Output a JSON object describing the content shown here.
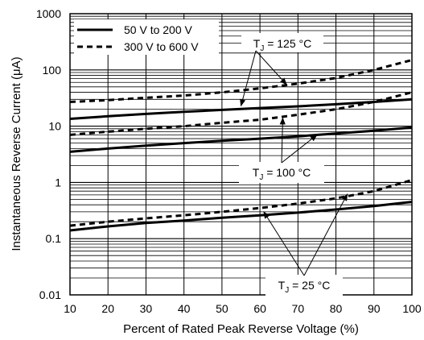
{
  "chart_data": {
    "type": "line",
    "title": "",
    "xlabel": "Percent of Rated Peak Reverse Voltage (%)",
    "ylabel": "Instantaneous Reverse Current (μA)",
    "x_scale": "linear",
    "y_scale": "log",
    "xlim": [
      10,
      100
    ],
    "ylim": [
      0.01,
      1000
    ],
    "x_ticks": [
      "10",
      "20",
      "30",
      "40",
      "50",
      "60",
      "70",
      "80",
      "90",
      "100"
    ],
    "y_ticks": [
      "0.01",
      "0.1",
      "1",
      "10",
      "100",
      "1000"
    ],
    "grid": true,
    "legend_position": "top-left",
    "legend": [
      {
        "label": "50 V to 200 V",
        "style": "solid"
      },
      {
        "label": "300 V to 600 V",
        "style": "dashed"
      }
    ],
    "series": [
      {
        "name": "50 V to 200 V",
        "style": "solid",
        "condition": "125",
        "x": [
          10,
          20,
          30,
          40,
          50,
          60,
          70,
          80,
          90,
          100
        ],
        "y": [
          13.5,
          15,
          16.5,
          18,
          19.5,
          21,
          22.5,
          24.5,
          27,
          30
        ]
      },
      {
        "name": "300 V to 600 V",
        "style": "dashed",
        "condition": "125",
        "x": [
          10,
          20,
          30,
          40,
          50,
          60,
          70,
          80,
          90,
          100
        ],
        "y": [
          27,
          29,
          32,
          35,
          40,
          47,
          57,
          72,
          100,
          150
        ]
      },
      {
        "name": "50 V to 200 V",
        "style": "solid",
        "condition": "100",
        "x": [
          10,
          20,
          30,
          40,
          50,
          60,
          70,
          80,
          90,
          100
        ],
        "y": [
          3.5,
          4,
          4.5,
          5,
          5.5,
          6,
          6.6,
          7.4,
          8.3,
          9.5
        ]
      },
      {
        "name": "300 V to 600 V",
        "style": "dashed",
        "condition": "100",
        "x": [
          10,
          20,
          30,
          40,
          50,
          60,
          70,
          80,
          90,
          100
        ],
        "y": [
          7,
          8,
          9,
          10,
          11.5,
          13,
          16,
          20,
          27,
          40
        ]
      },
      {
        "name": "50 V to 200 V",
        "style": "solid",
        "condition": "25",
        "x": [
          10,
          20,
          30,
          40,
          50,
          60,
          70,
          80,
          90,
          100
        ],
        "y": [
          0.14,
          0.165,
          0.19,
          0.21,
          0.235,
          0.26,
          0.29,
          0.33,
          0.38,
          0.45
        ]
      },
      {
        "name": "300 V to 600 V",
        "style": "dashed",
        "condition": "25",
        "x": [
          10,
          20,
          30,
          40,
          50,
          60,
          70,
          80,
          90,
          100
        ],
        "y": [
          0.17,
          0.2,
          0.23,
          0.26,
          0.3,
          0.35,
          0.42,
          0.52,
          0.7,
          1.1
        ]
      }
    ],
    "annotations": [
      {
        "prefix": "T",
        "sub": "J",
        "suffix": " = 125 °C",
        "targets": [
          [
            55,
            23
          ],
          [
            67,
            55
          ]
        ]
      },
      {
        "prefix": "T",
        "sub": "J",
        "suffix": " = 100 °C",
        "targets": [
          [
            66,
            14
          ],
          [
            75,
            7
          ]
        ]
      },
      {
        "prefix": "T",
        "sub": "J",
        "suffix": " = 25 °C",
        "targets": [
          [
            61,
            0.3
          ],
          [
            83,
            0.62
          ]
        ]
      }
    ]
  }
}
